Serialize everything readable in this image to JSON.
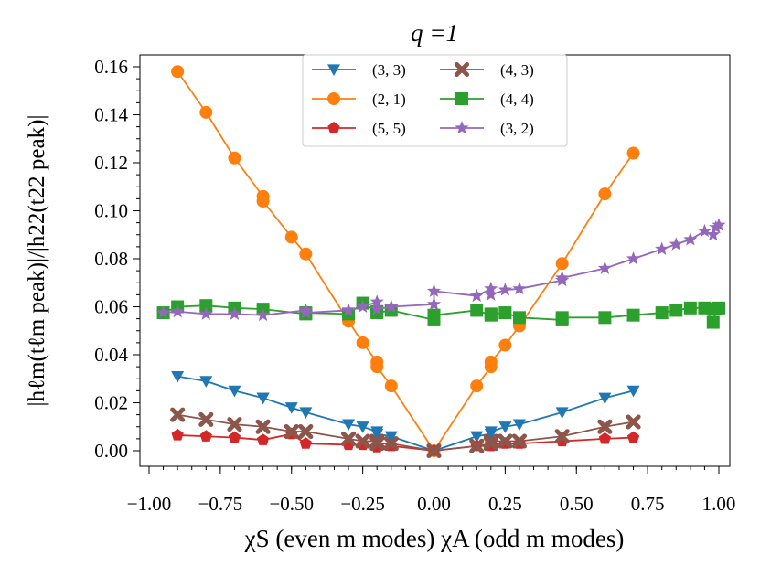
{
  "chart_data": {
    "type": "line",
    "title": "q =1",
    "xlabel": "χS (even m modes)   χA (odd m modes)",
    "ylabel": "|hℓm(tℓm peak)|/|h22(t22 peak)|",
    "xlim": [
      -1.0,
      1.0
    ],
    "ylim": [
      -0.005,
      0.168
    ],
    "xticks": [
      "−1.00",
      "−0.75",
      "−0.50",
      "−0.25",
      "0.00",
      "0.25",
      "0.50",
      "0.75",
      "1.00"
    ],
    "xtick_values": [
      -1,
      -0.75,
      -0.5,
      -0.25,
      0,
      0.25,
      0.5,
      0.75,
      1
    ],
    "yticks": [
      "0.00",
      "0.02",
      "0.04",
      "0.06",
      "0.08",
      "0.10",
      "0.12",
      "0.14",
      "0.16"
    ],
    "ytick_values": [
      0,
      0.02,
      0.04,
      0.06,
      0.08,
      0.1,
      0.12,
      0.14,
      0.16
    ],
    "legend_position": "top-center",
    "series": [
      {
        "name": "(3, 3)",
        "color": "#1f77b4",
        "marker": "triangle-down",
        "x": [
          -0.9,
          -0.8,
          -0.7,
          -0.6,
          -0.6,
          -0.5,
          -0.45,
          -0.3,
          -0.25,
          -0.2,
          -0.2,
          -0.15,
          0,
          0.15,
          0.2,
          0.2,
          0.25,
          0.3,
          0.45,
          0.6,
          0.7
        ],
        "y": [
          0.031,
          0.029,
          0.025,
          0.022,
          0.022,
          0.018,
          0.016,
          0.011,
          0.01,
          0.008,
          0.007,
          0.006,
          0.0,
          0.006,
          0.007,
          0.008,
          0.01,
          0.011,
          0.016,
          0.022,
          0.025
        ]
      },
      {
        "name": "(2, 1)",
        "color": "#ff7f0e",
        "marker": "circle",
        "x": [
          -0.9,
          -0.8,
          -0.7,
          -0.6,
          -0.6,
          -0.5,
          -0.45,
          -0.3,
          -0.25,
          -0.2,
          -0.2,
          -0.15,
          0,
          0.15,
          0.2,
          0.2,
          0.25,
          0.3,
          0.45,
          0.6,
          0.7
        ],
        "y": [
          0.158,
          0.141,
          0.122,
          0.106,
          0.104,
          0.089,
          0.082,
          0.054,
          0.045,
          0.037,
          0.035,
          0.027,
          0.0,
          0.027,
          0.035,
          0.037,
          0.044,
          0.052,
          0.078,
          0.107,
          0.124
        ]
      },
      {
        "name": "(5, 5)",
        "color": "#d62728",
        "marker": "pentagon",
        "x": [
          -0.9,
          -0.8,
          -0.7,
          -0.6,
          -0.5,
          -0.45,
          -0.3,
          -0.25,
          -0.2,
          -0.2,
          -0.15,
          0,
          0.15,
          0.2,
          0.2,
          0.25,
          0.3,
          0.45,
          0.6,
          0.7
        ],
        "y": [
          0.0065,
          0.006,
          0.0055,
          0.0045,
          0.007,
          0.003,
          0.0025,
          0.0025,
          0.002,
          0.0015,
          0.002,
          0.0,
          0.002,
          0.002,
          0.003,
          0.003,
          0.003,
          0.004,
          0.005,
          0.0055
        ]
      },
      {
        "name": "(4, 3)",
        "color": "#8c564b",
        "marker": "x",
        "x": [
          -0.9,
          -0.8,
          -0.7,
          -0.6,
          -0.5,
          -0.45,
          -0.3,
          -0.25,
          -0.2,
          -0.2,
          -0.15,
          0,
          0.15,
          0.2,
          0.2,
          0.25,
          0.3,
          0.45,
          0.6,
          0.7
        ],
        "y": [
          0.015,
          0.013,
          0.011,
          0.01,
          0.008,
          0.008,
          0.005,
          0.004,
          0.004,
          0.003,
          0.003,
          0.0,
          0.002,
          0.003,
          0.004,
          0.004,
          0.004,
          0.006,
          0.01,
          0.012
        ]
      },
      {
        "name": "(4, 4)",
        "color": "#2ca02c",
        "marker": "square",
        "x": [
          -0.95,
          -0.9,
          -0.8,
          -0.7,
          -0.6,
          -0.45,
          -0.45,
          -0.3,
          -0.25,
          -0.2,
          -0.2,
          -0.15,
          0,
          0,
          0.15,
          0.2,
          0.2,
          0.25,
          0.3,
          0.45,
          0.45,
          0.6,
          0.7,
          0.8,
          0.85,
          0.9,
          0.95,
          0.98,
          0.99,
          1.0
        ],
        "y": [
          0.0575,
          0.06,
          0.0605,
          0.0595,
          0.059,
          0.057,
          0.0575,
          0.057,
          0.0615,
          0.058,
          0.0575,
          0.0585,
          0.0545,
          0.0565,
          0.0585,
          0.0565,
          0.057,
          0.0575,
          0.0555,
          0.0545,
          0.0555,
          0.0555,
          0.0565,
          0.0575,
          0.0585,
          0.0595,
          0.0595,
          0.0535,
          0.059,
          0.0595
        ]
      },
      {
        "name": "(3, 2)",
        "color": "#9467bd",
        "marker": "star",
        "x": [
          -0.95,
          -0.9,
          -0.8,
          -0.7,
          -0.6,
          -0.45,
          -0.45,
          -0.3,
          -0.25,
          -0.2,
          -0.2,
          -0.15,
          0,
          0,
          0.15,
          0.2,
          0.2,
          0.25,
          0.3,
          0.45,
          0.45,
          0.6,
          0.7,
          0.8,
          0.85,
          0.9,
          0.95,
          0.98,
          0.99,
          1.0
        ],
        "y": [
          0.0575,
          0.058,
          0.057,
          0.057,
          0.0565,
          0.0585,
          0.0575,
          0.0585,
          0.06,
          0.062,
          0.059,
          0.06,
          0.061,
          0.0665,
          0.0645,
          0.0675,
          0.065,
          0.067,
          0.0675,
          0.071,
          0.072,
          0.076,
          0.08,
          0.084,
          0.086,
          0.088,
          0.0915,
          0.09,
          0.093,
          0.094
        ]
      }
    ],
    "legend_order": [
      0,
      3,
      1,
      4,
      2,
      5
    ]
  }
}
